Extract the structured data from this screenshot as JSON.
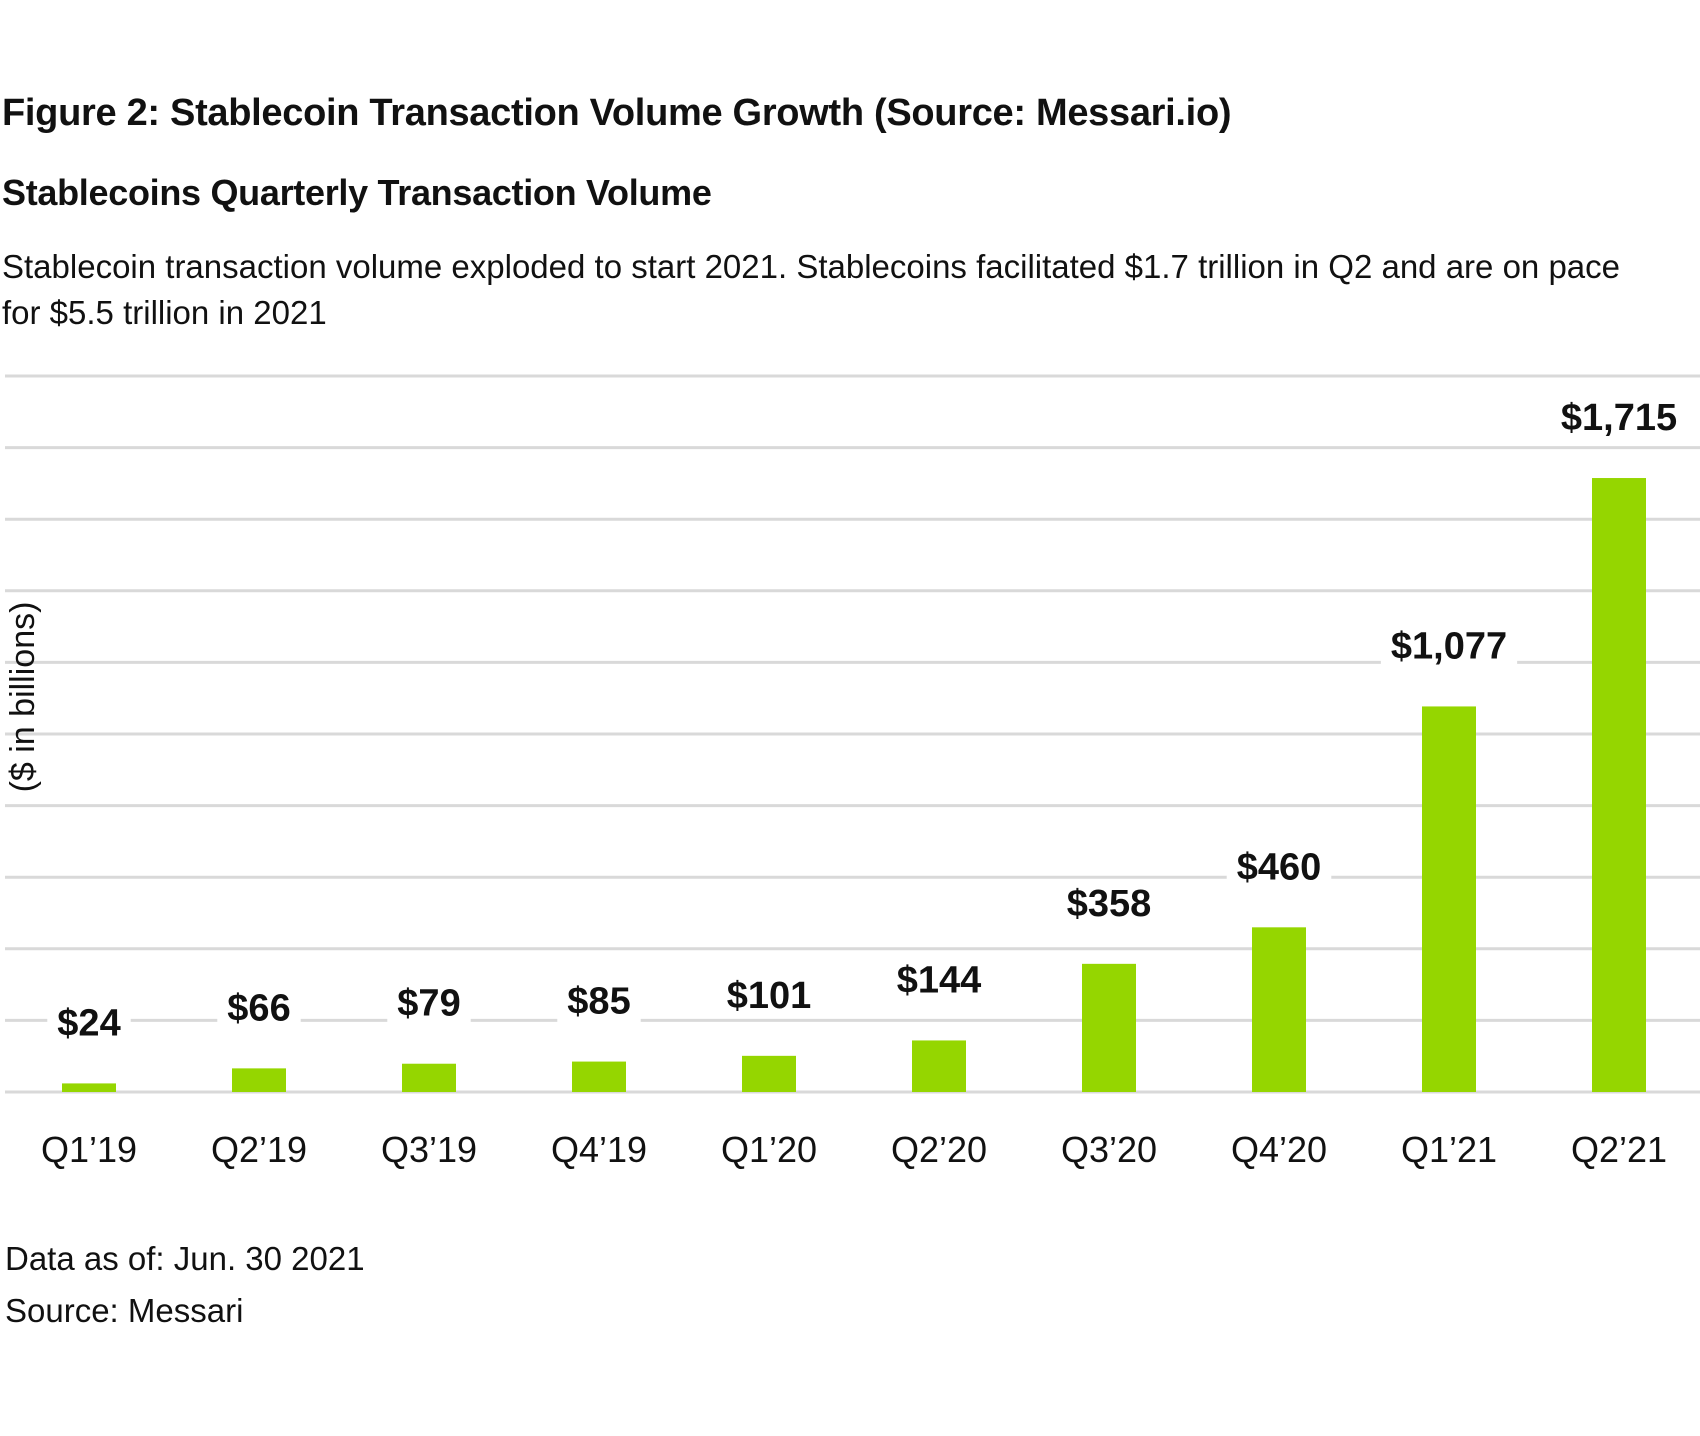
{
  "figure_title": "Figure 2: Stablecoin Transaction Volume Growth (Source: Messari.io)",
  "footnotes": {
    "as_of": "Data as of: Jun. 30 2021",
    "source": "Source: Messari"
  },
  "colors": {
    "bar": "#95d600",
    "grid": "#d9d9d9",
    "text": "#111111"
  },
  "chart_data": {
    "type": "bar",
    "title": "Stablecoins Quarterly Transaction Volume",
    "subtitle": "Stablecoin transaction volume exploded to start 2021. Stablecoins facilitated $1.7 trillion in Q2 and are on pace for $5.5 trillion in 2021",
    "ylabel": "($ in billions)",
    "xlabel": "",
    "categories": [
      "Q1’19",
      "Q2’19",
      "Q3’19",
      "Q4’19",
      "Q1’20",
      "Q2’20",
      "Q3’20",
      "Q4’20",
      "Q1’21",
      "Q2’21"
    ],
    "values": [
      24,
      66,
      79,
      85,
      101,
      144,
      358,
      460,
      1077,
      1715
    ],
    "value_labels": [
      "$24",
      "$66",
      "$79",
      "$85",
      "$101",
      "$144",
      "$358",
      "$460",
      "$1,077",
      "$1,715"
    ],
    "ylim": [
      0,
      2000
    ],
    "grid": true,
    "y_tick_labels_shown": false,
    "legend": "none"
  }
}
